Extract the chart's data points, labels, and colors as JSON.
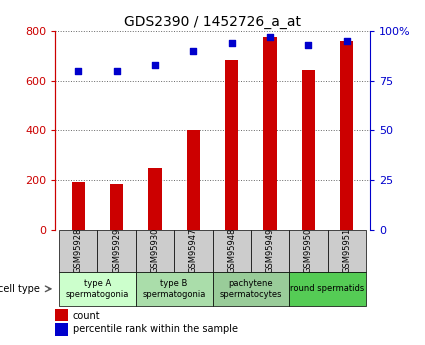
{
  "title": "GDS2390 / 1452726_a_at",
  "samples": [
    "GSM95928",
    "GSM95929",
    "GSM95930",
    "GSM95947",
    "GSM95948",
    "GSM95949",
    "GSM95950",
    "GSM95951"
  ],
  "counts": [
    190,
    185,
    250,
    400,
    685,
    775,
    645,
    760
  ],
  "percentiles": [
    80,
    80,
    83,
    90,
    94,
    97,
    93,
    95
  ],
  "ylim_left": [
    0,
    800
  ],
  "ylim_right": [
    0,
    100
  ],
  "yticks_left": [
    0,
    200,
    400,
    600,
    800
  ],
  "yticks_right": [
    0,
    25,
    50,
    75,
    100
  ],
  "bar_color": "#cc0000",
  "dot_color": "#0000cc",
  "bar_width": 0.35,
  "cell_groups": [
    {
      "label": "type A\nspermatogonia",
      "indices": [
        0,
        1
      ],
      "color": "#ccffcc"
    },
    {
      "label": "type B\nspermatogonia",
      "indices": [
        2,
        3
      ],
      "color": "#aaddaa"
    },
    {
      "label": "pachytene\nspermatocytes",
      "indices": [
        4,
        5
      ],
      "color": "#99cc99"
    },
    {
      "label": "round spermatids",
      "indices": [
        6,
        7
      ],
      "color": "#55cc55"
    }
  ],
  "sample_box_color": "#cccccc",
  "cell_type_label": "cell type",
  "legend_count": "count",
  "legend_percentile": "percentile rank within the sample",
  "grid_color": "#666666",
  "background_color": "#ffffff",
  "left_axis_color": "#cc0000",
  "right_axis_color": "#0000cc",
  "title_fontsize": 10,
  "axis_fontsize": 8,
  "sample_fontsize": 6,
  "cell_fontsize": 6,
  "legend_fontsize": 7
}
